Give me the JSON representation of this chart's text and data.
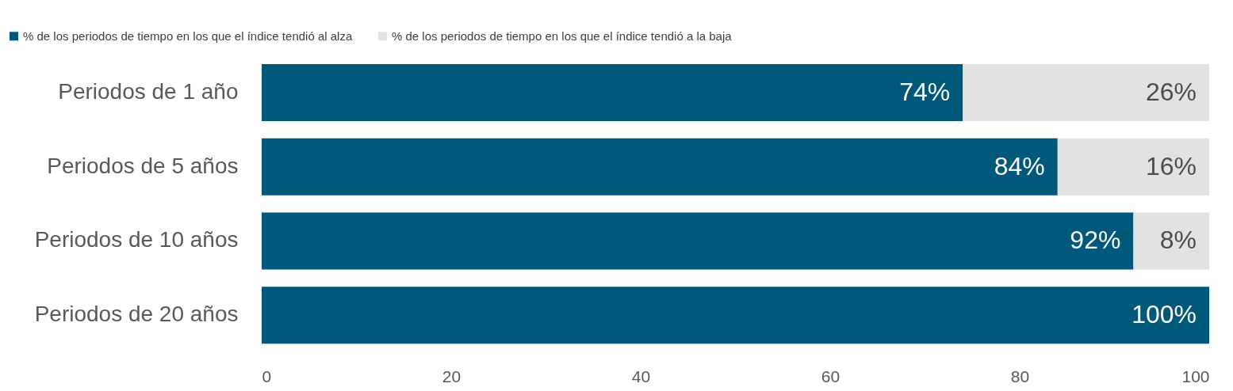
{
  "chart_data": {
    "type": "bar",
    "orientation": "horizontal",
    "stacked": true,
    "categories": [
      "Periodos de 1 año",
      "Periodos de 5 años",
      "Periodos de 10 años",
      "Periodos de 20 años"
    ],
    "series": [
      {
        "name": "% de los periodos de tiempo en los que el índice tendió al alza",
        "color": "#00587a",
        "values": [
          74,
          84,
          92,
          100
        ],
        "value_labels": [
          "74%",
          "84%",
          "92%",
          "100%"
        ]
      },
      {
        "name": "% de los periodos de tiempo en los que el índice tendió a la baja",
        "color": "#e1e2e4",
        "values": [
          26,
          16,
          8,
          0
        ],
        "value_labels": [
          "26%",
          "16%",
          "8%",
          null
        ]
      }
    ],
    "xlim": [
      0,
      100
    ],
    "xticks": [
      0,
      20,
      40,
      60,
      80,
      100
    ],
    "grid": false,
    "legend": "top left"
  }
}
